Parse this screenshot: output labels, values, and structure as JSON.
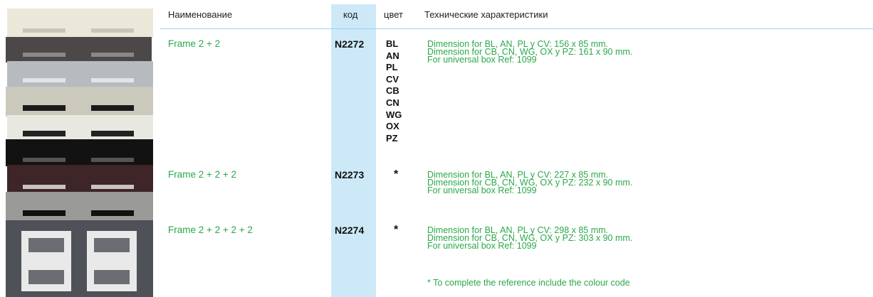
{
  "header": {
    "name": "Наименование",
    "code": "код",
    "color": "цвет",
    "specs": "Технические характеристики"
  },
  "rows": [
    {
      "name": "Frame 2 + 2",
      "code": "N2272",
      "colors": [
        "BL",
        "AN",
        "PL",
        "CV",
        "CB",
        "CN",
        "WG",
        "OX",
        "PZ"
      ],
      "specs": [
        "Dimension for BL, AN, PL y CV: 156 x 85 mm.",
        "Dimension for CB, CN, WG, OX y PZ: 161 x 90 mm.",
        "For universal box Ref: 1099"
      ]
    },
    {
      "name": "Frame 2 + 2 + 2",
      "code": "N2273",
      "colors": [
        "*"
      ],
      "specs": [
        "Dimension for BL, AN, PL y CV: 227 x 85 mm.",
        "Dimension for CB, CN, WG, OX y PZ: 232 x 90 mm.",
        "For universal box Ref: 1099"
      ]
    },
    {
      "name": "Frame 2 + 2 + 2 + 2",
      "code": "N2274",
      "colors": [
        "*"
      ],
      "specs": [
        "Dimension for BL, AN, PL y CV: 298 x 85 mm.",
        "Dimension for CB, CN, WG, OX y PZ: 303 x 90 mm.",
        "For universal box Ref: 1099"
      ]
    }
  ],
  "footnote": "* To complete the reference include the colour code"
}
